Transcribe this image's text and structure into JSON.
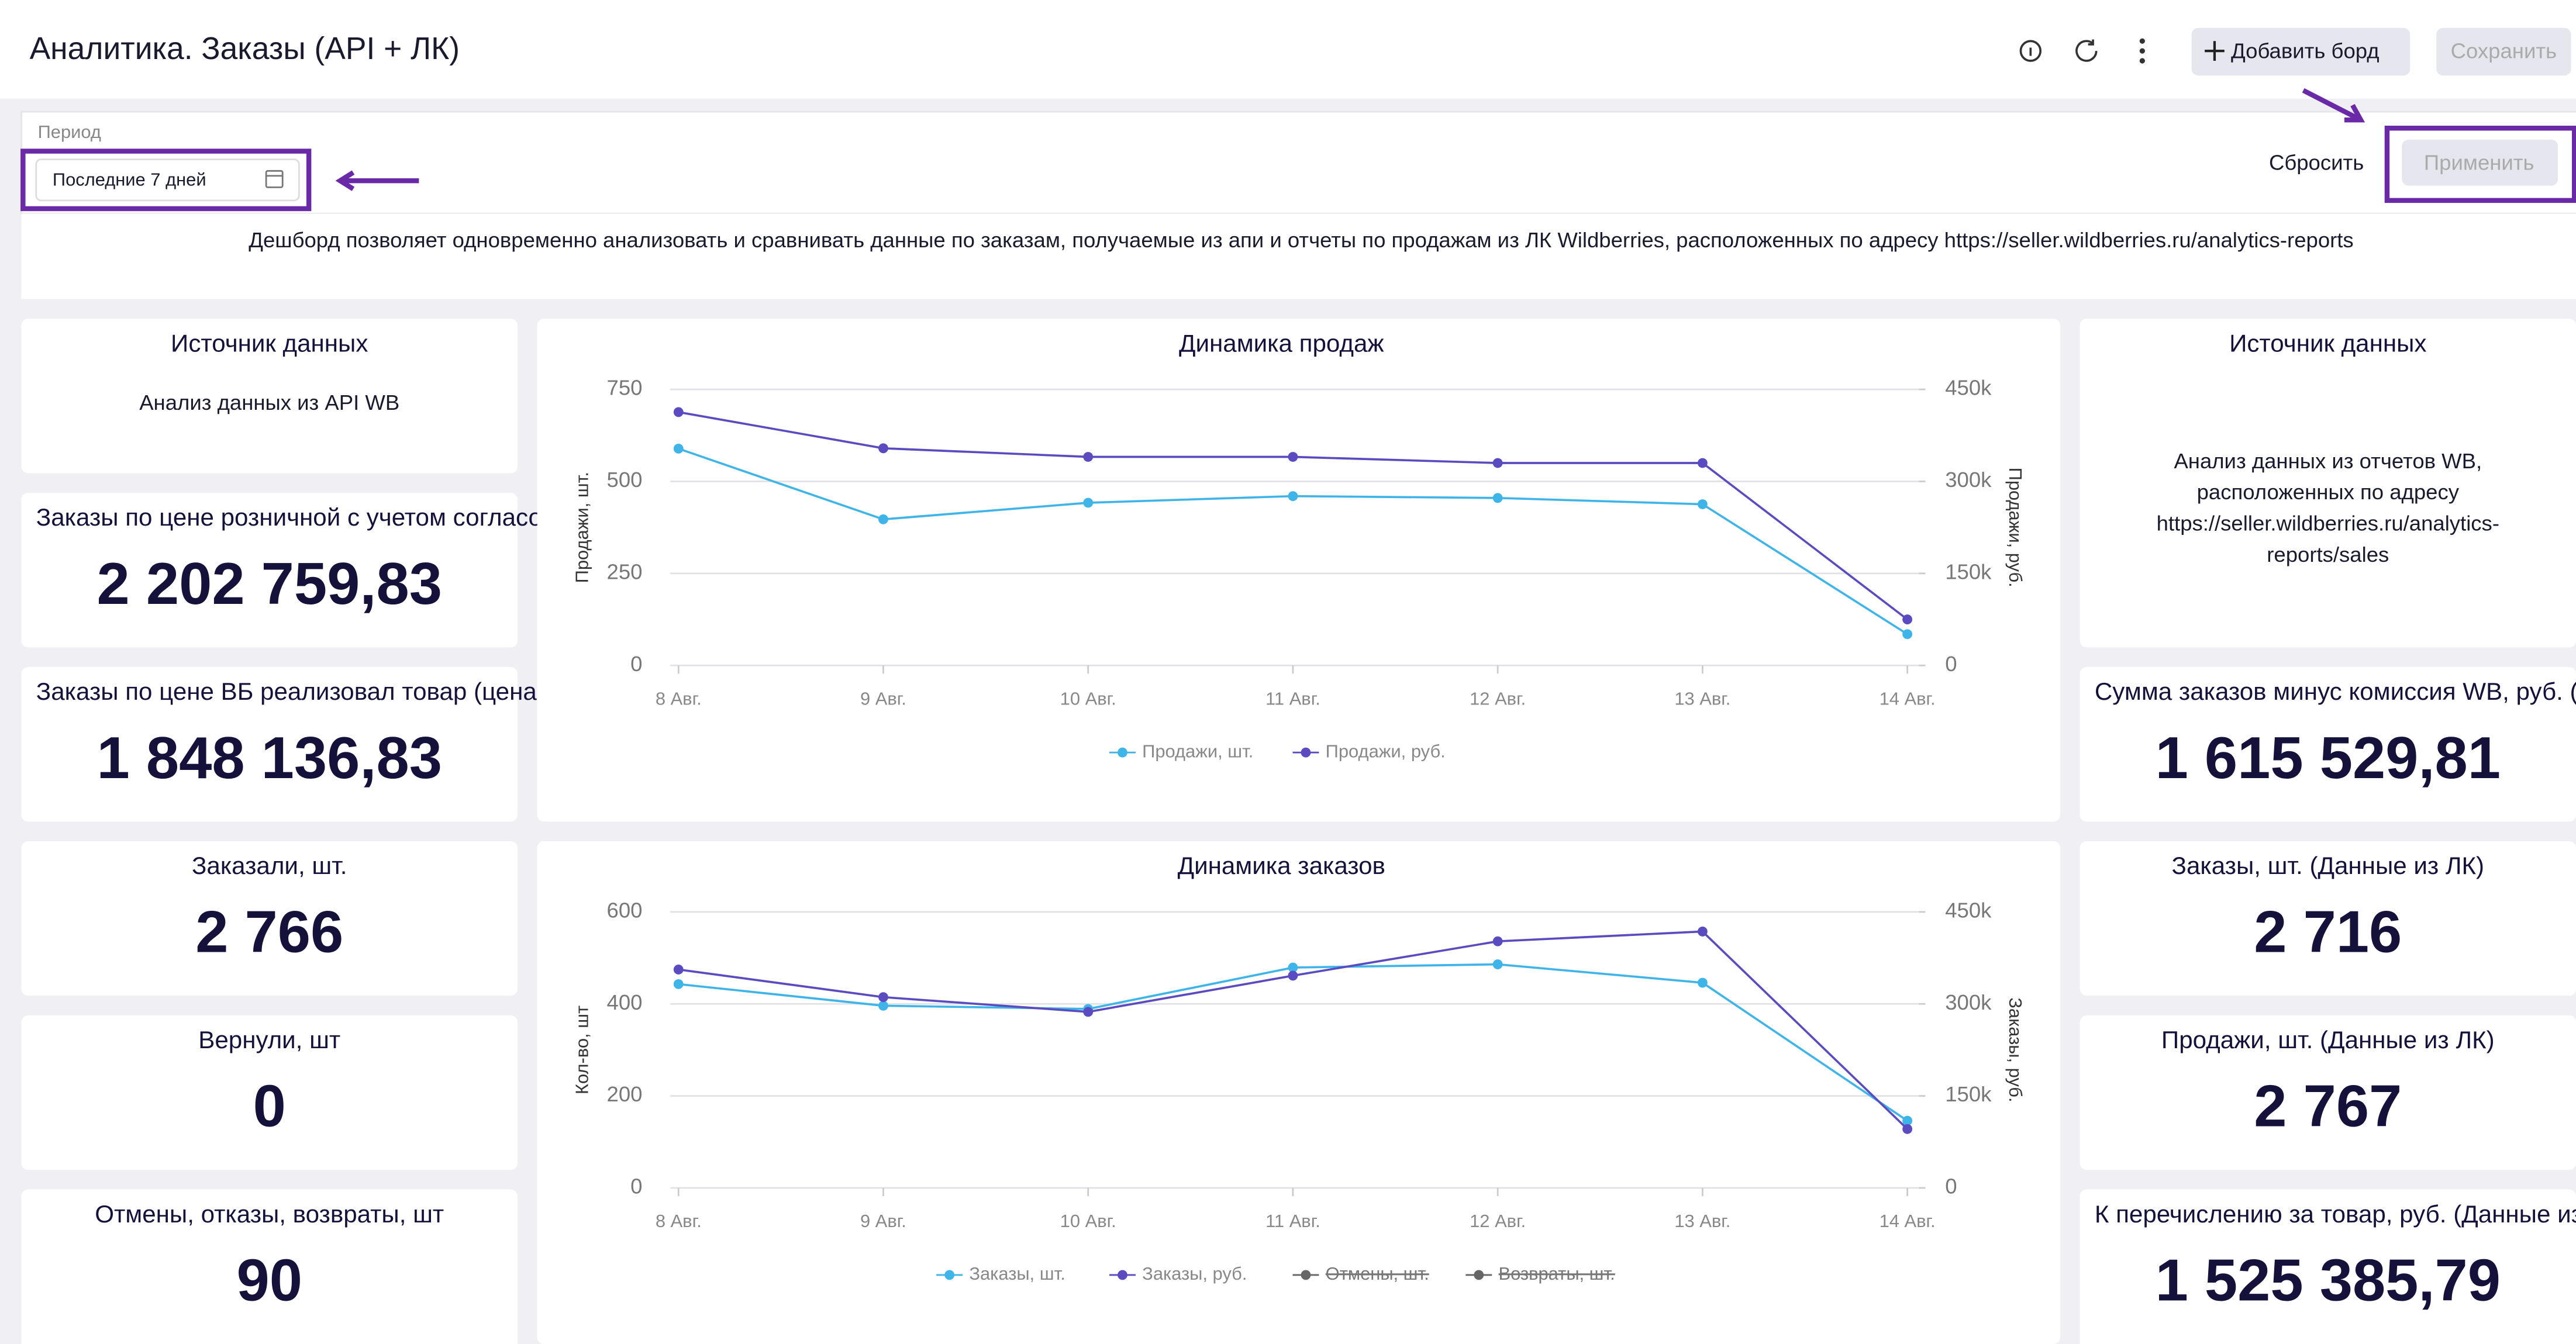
{
  "header": {
    "title": "Аналитика. Заказы (API + ЛК)",
    "add_button": "Добавить борд",
    "save_button": "Сохранить"
  },
  "filter": {
    "label": "Период",
    "value": "Последние 7 дней",
    "reset": "Сбросить",
    "apply": "Применить"
  },
  "description": "Дешборд позволяет одновременно анализовать и сравнивать данные по заказам, получаемые из апи и отчеты по продажам из ЛК Wildberries, расположенных по адресу https://seller.wildberries.ru/analytics-reports",
  "left_cards": [
    {
      "title": "Источник данных",
      "text": [
        "Анализ данных из API WB"
      ]
    },
    {
      "title": "Заказы по цене розничной с учетом согласо...",
      "value": "2 202 759,83"
    },
    {
      "title": "Заказы по цене ВБ реализовал товар (цена ...",
      "value": "1 848 136,83"
    },
    {
      "title": "Заказали, шт.",
      "value": "2 766"
    },
    {
      "title": "Вернули, шт",
      "value": "0"
    },
    {
      "title": "Отмены, отказы, возвраты, шт",
      "value": "90"
    }
  ],
  "right_cards": [
    {
      "title": "Источник данных",
      "text": [
        "Анализ данных из отчетов WB,",
        "расположенных по адресу",
        "https://seller.wildberries.ru/analytics-",
        "reports/sales"
      ]
    },
    {
      "title": "Сумма заказов минус комиссия WB, руб. (Д...",
      "value": "1 615 529,81"
    },
    {
      "title": "Заказы, шт. (Данные из ЛК)",
      "value": "2 716"
    },
    {
      "title": "Продажи, шт. (Данные из ЛК)",
      "value": "2 767"
    },
    {
      "title": "К перечислению за товар, руб. (Данные из ...",
      "value": "1 525 385,79"
    }
  ],
  "chart_data": [
    {
      "type": "line",
      "title": "Динамика продаж",
      "y_label": "Продажи, шт.",
      "y2_label": "Продажи, руб.",
      "categories": [
        "8 Авг.",
        "9 Авг.",
        "10 Авг.",
        "11 Авг.",
        "12 Авг.",
        "13 Авг.",
        "14 Авг."
      ],
      "ylim": [
        0,
        750
      ],
      "yticks": [
        0,
        250,
        500,
        750
      ],
      "y2lim": [
        0,
        450000
      ],
      "y2ticks": [
        0,
        {
          "value": 150000,
          "label": "150k"
        },
        {
          "value": 300000,
          "label": "300k"
        },
        {
          "value": 450000,
          "label": "450k"
        }
      ],
      "grid": true,
      "series": [
        {
          "name": "Продажи, шт.",
          "color": "#3fb4e8",
          "values": [
            589,
            397,
            442,
            460,
            455,
            438,
            85
          ]
        },
        {
          "name": "Продажи, руб.",
          "color": "#5a4bc0",
          "axis": "y2",
          "values": [
            413000,
            354000,
            340000,
            340000,
            330000,
            330000,
            75000
          ]
        }
      ]
    },
    {
      "type": "line",
      "title": "Динамика заказов",
      "y_label": "Кол-во, шт",
      "y2_label": "Заказы, руб.",
      "categories": [
        "8 Авг.",
        "9 Авг.",
        "10 Авг.",
        "11 Авг.",
        "12 Авг.",
        "13 Авг.",
        "14 Авг."
      ],
      "ylim": [
        0,
        600
      ],
      "yticks": [
        0,
        200,
        400,
        600
      ],
      "y2lim": [
        0,
        450000
      ],
      "y2ticks": [
        0,
        {
          "value": 150000,
          "label": "150k"
        },
        {
          "value": 300000,
          "label": "300k"
        },
        {
          "value": 450000,
          "label": "450k"
        }
      ],
      "grid": true,
      "series": [
        {
          "name": "Заказы, шт.",
          "color": "#3fb4e8",
          "values": [
            443,
            396,
            389,
            479,
            486,
            446,
            146
          ]
        },
        {
          "name": "Заказы, руб.",
          "color": "#5a4bc0",
          "axis": "y2",
          "values": [
            356000,
            311000,
            287000,
            346000,
            402000,
            418000,
            96000
          ]
        }
      ],
      "hidden_legend": [
        {
          "name": "Отмены, шт.",
          "color": "#666666"
        },
        {
          "name": "Возвраты, шт.",
          "color": "#666666"
        }
      ]
    }
  ]
}
